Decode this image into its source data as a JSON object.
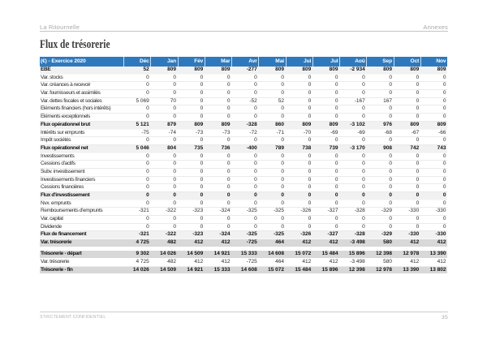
{
  "page": {
    "header_left": "La Ritournelle",
    "header_right": "Annexes",
    "title": "Flux de trésorerie",
    "footer_left": "STRICTEMENT CONFIDENTIEL",
    "footer_page_number": "35"
  },
  "colors": {
    "table_header_blue": "#2e79bd",
    "subtotal_row_bg": "#f1f1f1",
    "total_row_bg": "#d8d8d8",
    "muted_gray_text": "#a3a3a3"
  },
  "table": {
    "corner_label": "(€) - Exercice 2020",
    "columns": [
      "Déc",
      "Jan",
      "Fév",
      "Mar",
      "Avr",
      "Mai",
      "Jui",
      "Jul",
      "Aoû",
      "Sep",
      "Oct",
      "Nov"
    ],
    "rows": [
      {
        "label": "EBE",
        "style": "subtotal",
        "values": [
          "52",
          "809",
          "809",
          "809",
          "-277",
          "809",
          "809",
          "809",
          "-2 934",
          "809",
          "809",
          "809"
        ]
      },
      {
        "label": "Var. stocks",
        "style": "normal",
        "values": [
          "0",
          "0",
          "0",
          "0",
          "0",
          "0",
          "0",
          "0",
          "0",
          "0",
          "0",
          "0"
        ]
      },
      {
        "label": "Var. créances à recevoir",
        "style": "normal",
        "values": [
          "0",
          "0",
          "0",
          "0",
          "0",
          "0",
          "0",
          "0",
          "0",
          "0",
          "0",
          "0"
        ]
      },
      {
        "label": "Var. fournisseurs et assimilés",
        "style": "normal",
        "values": [
          "0",
          "0",
          "0",
          "0",
          "0",
          "0",
          "0",
          "0",
          "0",
          "0",
          "0",
          "0"
        ]
      },
      {
        "label": "Var. dettes fiscales et sociales",
        "style": "normal",
        "values": [
          "5 069",
          "70",
          "0",
          "0",
          "-52",
          "52",
          "0",
          "0",
          "-167",
          "167",
          "0",
          "0"
        ]
      },
      {
        "label": "Eléments financiers (hors intérêts)",
        "style": "normal",
        "values": [
          "0",
          "0",
          "0",
          "0",
          "0",
          "0",
          "0",
          "0",
          "0",
          "0",
          "0",
          "0"
        ]
      },
      {
        "label": "Eléments exceptionnels",
        "style": "normal",
        "values": [
          "0",
          "0",
          "0",
          "0",
          "0",
          "0",
          "0",
          "0",
          "0",
          "0",
          "0",
          "0"
        ]
      },
      {
        "label": "Flux opérationnel brut",
        "style": "subtotal",
        "values": [
          "5 121",
          "879",
          "809",
          "809",
          "-328",
          "860",
          "809",
          "809",
          "-3 102",
          "976",
          "809",
          "809"
        ]
      },
      {
        "label": "Intérêts sur emprunts",
        "style": "normal",
        "values": [
          "-75",
          "-74",
          "-73",
          "-73",
          "-72",
          "-71",
          "-70",
          "-69",
          "-69",
          "-68",
          "-67",
          "-66"
        ]
      },
      {
        "label": "Impôt sociétés",
        "style": "normal",
        "values": [
          "0",
          "0",
          "0",
          "0",
          "0",
          "0",
          "0",
          "0",
          "0",
          "0",
          "0",
          "0"
        ]
      },
      {
        "label": "Flux opérationnel net",
        "style": "subtotal",
        "values": [
          "5 046",
          "804",
          "735",
          "736",
          "-400",
          "789",
          "738",
          "739",
          "-3 170",
          "908",
          "742",
          "743"
        ]
      },
      {
        "label": "Investissements",
        "style": "normal",
        "values": [
          "0",
          "0",
          "0",
          "0",
          "0",
          "0",
          "0",
          "0",
          "0",
          "0",
          "0",
          "0"
        ]
      },
      {
        "label": "Cessions d'actifs",
        "style": "normal",
        "values": [
          "0",
          "0",
          "0",
          "0",
          "0",
          "0",
          "0",
          "0",
          "0",
          "0",
          "0",
          "0"
        ]
      },
      {
        "label": "Subv. investissement",
        "style": "normal",
        "values": [
          "0",
          "0",
          "0",
          "0",
          "0",
          "0",
          "0",
          "0",
          "0",
          "0",
          "0",
          "0"
        ]
      },
      {
        "label": "Investissements financiers",
        "style": "normal",
        "values": [
          "0",
          "0",
          "0",
          "0",
          "0",
          "0",
          "0",
          "0",
          "0",
          "0",
          "0",
          "0"
        ]
      },
      {
        "label": "Cessions financières",
        "style": "normal",
        "values": [
          "0",
          "0",
          "0",
          "0",
          "0",
          "0",
          "0",
          "0",
          "0",
          "0",
          "0",
          "0"
        ]
      },
      {
        "label": "Flux d'investissement",
        "style": "subtotal",
        "values": [
          "0",
          "0",
          "0",
          "0",
          "0",
          "0",
          "0",
          "0",
          "0",
          "0",
          "0",
          "0"
        ]
      },
      {
        "label": "Nvx. emprunts",
        "style": "normal",
        "values": [
          "0",
          "0",
          "0",
          "0",
          "0",
          "0",
          "0",
          "0",
          "0",
          "0",
          "0",
          "0"
        ]
      },
      {
        "label": "Remboursements d'emprunts",
        "style": "normal",
        "values": [
          "-321",
          "-322",
          "-323",
          "-324",
          "-325",
          "-325",
          "-326",
          "-327",
          "-328",
          "-329",
          "-330",
          "-330"
        ]
      },
      {
        "label": "Var. capital",
        "style": "normal",
        "values": [
          "0",
          "0",
          "0",
          "0",
          "0",
          "0",
          "0",
          "0",
          "0",
          "0",
          "0",
          "0"
        ]
      },
      {
        "label": "Dividende",
        "style": "normal",
        "values": [
          "0",
          "0",
          "0",
          "0",
          "0",
          "0",
          "0",
          "0",
          "0",
          "0",
          "0",
          "0"
        ]
      },
      {
        "label": "Flux de financement",
        "style": "subtotal",
        "values": [
          "-321",
          "-322",
          "-323",
          "-324",
          "-325",
          "-325",
          "-326",
          "-327",
          "-328",
          "-329",
          "-330",
          "-330"
        ]
      },
      {
        "label": "Var. trésorerie",
        "style": "total",
        "values": [
          "4 725",
          "482",
          "412",
          "412",
          "-725",
          "464",
          "412",
          "412",
          "-3 498",
          "580",
          "412",
          "412"
        ]
      },
      {
        "style": "spacer"
      },
      {
        "label": "Trésorerie - départ",
        "style": "total",
        "values": [
          "9 302",
          "14 026",
          "14 509",
          "14 921",
          "15 333",
          "14 608",
          "15 072",
          "15 484",
          "15 896",
          "12 398",
          "12 978",
          "13 390"
        ]
      },
      {
        "label": "Var. trésorerie",
        "style": "normal",
        "values": [
          "4 725",
          "482",
          "412",
          "412",
          "-725",
          "464",
          "412",
          "412",
          "-3 498",
          "580",
          "412",
          "412"
        ]
      },
      {
        "label": "Trésorerie - fin",
        "style": "total",
        "values": [
          "14 026",
          "14 509",
          "14 921",
          "15 333",
          "14 608",
          "15 072",
          "15 484",
          "15 896",
          "12 398",
          "12 978",
          "13 390",
          "13 802"
        ]
      }
    ]
  }
}
